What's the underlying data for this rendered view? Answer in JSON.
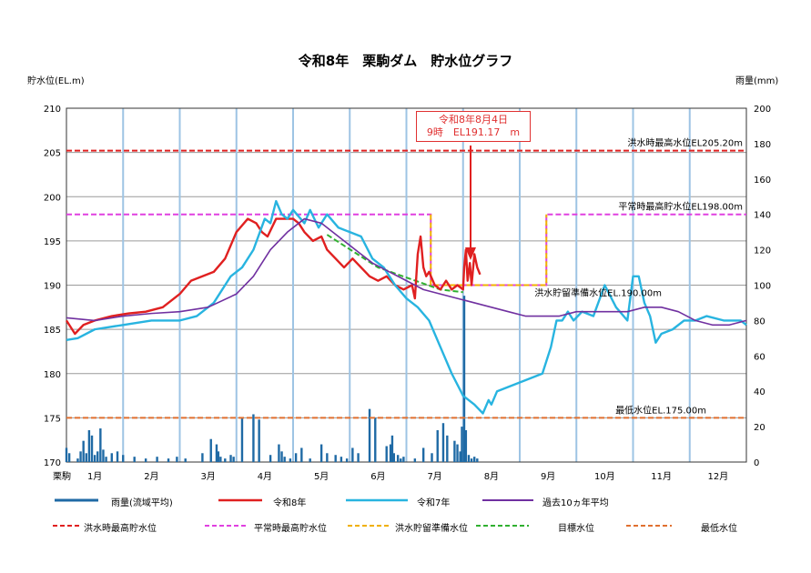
{
  "chart_data": {
    "type": "line",
    "title": "令和8年　栗駒ダム　貯水位グラフ",
    "ylabel": "貯水位(EL.m)",
    "y2label": "雨量(mm)",
    "ylim": [
      170,
      210
    ],
    "y2lim": [
      0,
      200
    ],
    "yticks": [
      "170",
      "175",
      "180",
      "185",
      "190",
      "195",
      "200",
      "205",
      "210"
    ],
    "y2ticks": [
      "0",
      "20",
      "40",
      "60",
      "80",
      "100",
      "120",
      "140",
      "160",
      "180",
      "200"
    ],
    "xlim": [
      1,
      13
    ],
    "xticks": [
      {
        "label": "1月",
        "pos": 1.5
      },
      {
        "label": "2月",
        "pos": 2.5
      },
      {
        "label": "3月",
        "pos": 3.5
      },
      {
        "label": "4月",
        "pos": 4.5
      },
      {
        "label": "5月",
        "pos": 5.5
      },
      {
        "label": "6月",
        "pos": 6.5
      },
      {
        "label": "7月",
        "pos": 7.5
      },
      {
        "label": "8月",
        "pos": 8.5
      },
      {
        "label": "9月",
        "pos": 9.5
      },
      {
        "label": "10月",
        "pos": 10.5
      },
      {
        "label": "11月",
        "pos": 11.5
      },
      {
        "label": "12月",
        "pos": 12.5
      }
    ],
    "station_label": "栗駒",
    "grid": true,
    "reference_lines": [
      {
        "name": "洪水時最高貯水位",
        "label": "洪水時最高水位EL205.20m",
        "color": "#e02020",
        "points": [
          [
            1,
            205.2
          ],
          [
            13,
            205.2
          ]
        ]
      },
      {
        "name": "平常時最高貯水位",
        "label": "平常時最高貯水位EL198.00m",
        "color": "#e040e0",
        "points": [
          [
            1,
            198
          ],
          [
            7.43,
            198
          ],
          [
            7.43,
            190
          ],
          [
            9.47,
            190
          ],
          [
            9.47,
            198
          ],
          [
            13,
            198
          ]
        ]
      },
      {
        "name": "洪水貯留準備水位",
        "label": "洪水貯留準備水位EL.190.00m",
        "color": "#f0b000",
        "points": [
          [
            7.43,
            198
          ],
          [
            7.43,
            190
          ],
          [
            9.47,
            190
          ],
          [
            9.47,
            198
          ]
        ]
      },
      {
        "name": "目標水位",
        "label": "",
        "color": "#30b030",
        "points": [
          [
            5.6,
            195.7
          ],
          [
            6.5,
            192
          ],
          [
            7.6,
            189.5
          ],
          [
            8.0,
            189.2
          ]
        ]
      },
      {
        "name": "最低水位",
        "label": "最低水位EL.175.00m",
        "color": "#e07030",
        "points": [
          [
            1,
            175
          ],
          [
            13,
            175
          ]
        ]
      }
    ],
    "series": [
      {
        "name": "令和8年",
        "color": "#e02020",
        "x": [
          1.0,
          1.15,
          1.3,
          1.5,
          1.8,
          2.1,
          2.4,
          2.7,
          3.0,
          3.2,
          3.4,
          3.6,
          3.8,
          4.0,
          4.2,
          4.35,
          4.45,
          4.55,
          4.7,
          4.85,
          5.0,
          5.1,
          5.2,
          5.35,
          5.5,
          5.6,
          5.75,
          5.9,
          6.05,
          6.2,
          6.35,
          6.5,
          6.65,
          6.8,
          6.95,
          7.1,
          7.15,
          7.2,
          7.25,
          7.3,
          7.35,
          7.4,
          7.5,
          7.6,
          7.7,
          7.8,
          7.9,
          8.0,
          8.02,
          8.05,
          8.08,
          8.12,
          8.15,
          8.2,
          8.25,
          8.3
        ],
        "y": [
          186,
          184.5,
          185.5,
          186,
          186.5,
          186.8,
          187,
          187.5,
          189,
          190.5,
          191,
          191.5,
          193,
          196,
          197.5,
          197,
          196,
          195.5,
          197.5,
          197.5,
          197.5,
          197,
          196,
          195,
          195.5,
          194,
          193,
          192,
          193,
          192,
          191,
          190.5,
          191,
          190,
          189.5,
          190,
          188.5,
          193.5,
          195.5,
          192,
          191,
          191.5,
          190,
          189.5,
          190.5,
          189.5,
          190,
          189.5,
          192,
          194,
          190.5,
          192.5,
          190,
          193.5,
          192,
          191.2
        ]
      },
      {
        "name": "令和7年",
        "color": "#28b4e0",
        "x": [
          1.0,
          1.2,
          1.5,
          2.0,
          2.5,
          3.0,
          3.3,
          3.6,
          3.9,
          4.1,
          4.3,
          4.5,
          4.6,
          4.7,
          4.8,
          4.9,
          5.0,
          5.2,
          5.3,
          5.45,
          5.6,
          5.8,
          6.0,
          6.2,
          6.4,
          6.6,
          6.8,
          7.0,
          7.2,
          7.4,
          7.6,
          7.8,
          8.0,
          8.2,
          8.35,
          8.45,
          8.5,
          8.6,
          8.8,
          9.0,
          9.2,
          9.4,
          9.55,
          9.65,
          9.75,
          9.85,
          9.95,
          10.1,
          10.3,
          10.5,
          10.7,
          10.9,
          11.0,
          11.1,
          11.2,
          11.3,
          11.4,
          11.5,
          11.7,
          11.9,
          12.1,
          12.3,
          12.6,
          12.9,
          13.0
        ],
        "y": [
          183.8,
          184,
          185,
          185.5,
          186,
          186,
          186.5,
          188,
          191,
          192,
          194,
          197.5,
          197,
          199.5,
          198,
          197.5,
          198.5,
          197,
          198.5,
          196.5,
          198,
          196.5,
          196,
          195.5,
          193,
          192,
          190,
          188.5,
          187.5,
          186,
          183,
          180,
          177.5,
          176.5,
          175.5,
          177,
          176.5,
          178,
          178.5,
          179,
          179.5,
          180,
          183,
          186,
          186,
          187,
          186,
          187,
          186.5,
          190,
          187.5,
          186,
          191,
          191,
          188,
          186.5,
          183.5,
          184.5,
          185,
          186,
          186,
          186.5,
          186,
          186,
          185.5
        ]
      },
      {
        "name": "過去10ヵ年平均",
        "color": "#7030a0",
        "x": [
          1.0,
          1.5,
          2.0,
          2.5,
          3.0,
          3.5,
          4.0,
          4.3,
          4.6,
          4.9,
          5.2,
          5.5,
          5.8,
          6.1,
          6.4,
          6.7,
          7.0,
          7.3,
          7.6,
          7.9,
          8.2,
          8.5,
          8.8,
          9.1,
          9.4,
          9.7,
          10.0,
          10.3,
          10.6,
          10.9,
          11.2,
          11.5,
          11.8,
          12.1,
          12.4,
          12.7,
          13.0
        ],
        "y": [
          186.3,
          186,
          186.5,
          186.8,
          187,
          187.5,
          189,
          191,
          194,
          196,
          197.5,
          197,
          195.5,
          194,
          192.5,
          191.5,
          190.5,
          189.5,
          189,
          188.5,
          188,
          187.5,
          187,
          186.5,
          186.5,
          186.5,
          187,
          187,
          187,
          187,
          187.5,
          187.5,
          187,
          186,
          185.5,
          185.5,
          186
        ]
      },
      {
        "name": "雨量(流域平均)",
        "color": "#1f6aa5",
        "type": "bar",
        "axis": "y2",
        "x": [
          1.0,
          1.05,
          1.2,
          1.25,
          1.3,
          1.35,
          1.4,
          1.45,
          1.5,
          1.55,
          1.6,
          1.65,
          1.7,
          1.8,
          1.9,
          2.0,
          2.2,
          2.4,
          2.6,
          2.8,
          2.95,
          3.1,
          3.4,
          3.55,
          3.65,
          3.68,
          3.72,
          3.8,
          3.9,
          3.95,
          4.1,
          4.3,
          4.4,
          4.6,
          4.75,
          4.8,
          4.85,
          4.95,
          5.05,
          5.15,
          5.3,
          5.5,
          5.6,
          5.75,
          5.85,
          5.95,
          6.05,
          6.15,
          6.35,
          6.45,
          6.65,
          6.72,
          6.75,
          6.78,
          6.85,
          6.9,
          6.95,
          7.15,
          7.3,
          7.45,
          7.55,
          7.65,
          7.72,
          7.85,
          7.9,
          7.95,
          7.98,
          8.02,
          8.05,
          8.1,
          8.15,
          8.2,
          8.25
        ],
        "y": [
          8,
          5,
          2,
          6,
          12,
          5,
          18,
          15,
          4,
          6,
          19,
          7,
          3,
          5,
          6,
          4,
          3,
          2,
          3,
          2,
          3,
          2,
          5,
          13,
          10,
          6,
          3,
          2,
          4,
          3,
          25,
          27,
          24,
          4,
          10,
          6,
          3,
          2,
          5,
          8,
          2,
          10,
          5,
          4,
          3,
          2,
          8,
          5,
          30,
          25,
          9,
          10,
          15,
          5,
          4,
          2,
          3,
          2,
          8,
          5,
          18,
          22,
          15,
          12,
          10,
          6,
          20,
          94,
          18,
          4,
          2,
          3,
          2
        ]
      }
    ]
  },
  "annotation": {
    "line1": "令和8年8月4日",
    "line2": "9時　EL191.17　m"
  },
  "legend": {
    "row1": [
      "雨量(流域平均)",
      "令和8年",
      "令和7年",
      "過去10ヵ年平均"
    ],
    "row2": [
      "洪水時最高貯水位",
      "平常時最高貯水位",
      "洪水貯留準備水位",
      "目標水位",
      "最低水位"
    ]
  }
}
